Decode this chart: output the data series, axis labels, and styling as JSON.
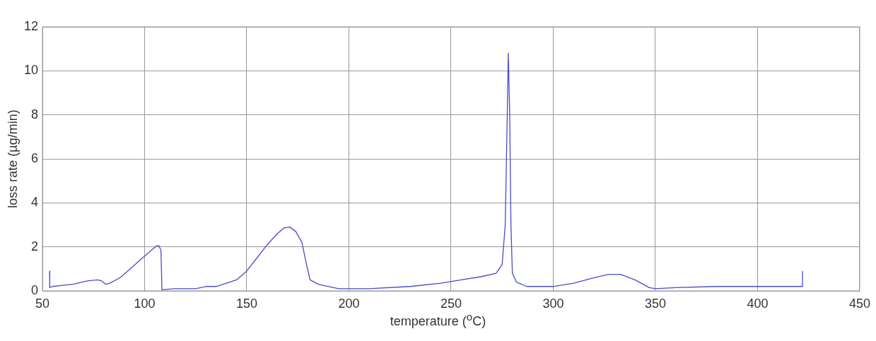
{
  "chart_data": {
    "type": "line",
    "xlabel": "temperature ($^{o}$C)",
    "ylabel": "loss rate (µg/min)",
    "xlim": [
      50,
      450
    ],
    "xticks": [
      50,
      100,
      150,
      200,
      250,
      300,
      350,
      400,
      450
    ],
    "ylim": [
      0,
      12
    ],
    "yticks": [
      0,
      2,
      4,
      6,
      8,
      10,
      12
    ],
    "grid": true,
    "marker": "none",
    "line_style": "solid",
    "series": [
      {
        "color": "#4b4bc8",
        "x": [
          53.5,
          53.6,
          55,
          60,
          65,
          72,
          77,
          79,
          81,
          83,
          88,
          93,
          99,
          104,
          106,
          107,
          108,
          108.5,
          115,
          125,
          130,
          135,
          140,
          145,
          150,
          155,
          160,
          165,
          168,
          171,
          174,
          177,
          179,
          181,
          185,
          190,
          195,
          210,
          230,
          245,
          255,
          265,
          272,
          275,
          276.5,
          277.5,
          278,
          278.7,
          279.3,
          280,
          282,
          287,
          300,
          310,
          320,
          327,
          333,
          340,
          347,
          350,
          360,
          380,
          400,
          420,
          422,
          422
        ],
        "values": [
          0.9,
          0.15,
          0.2,
          0.25,
          0.3,
          0.45,
          0.5,
          0.45,
          0.3,
          0.35,
          0.6,
          1.0,
          1.5,
          1.9,
          2.05,
          2.05,
          1.85,
          0.05,
          0.1,
          0.1,
          0.2,
          0.2,
          0.35,
          0.5,
          0.9,
          1.5,
          2.1,
          2.6,
          2.85,
          2.9,
          2.7,
          2.2,
          1.3,
          0.5,
          0.3,
          0.2,
          0.1,
          0.1,
          0.2,
          0.35,
          0.5,
          0.65,
          0.8,
          1.2,
          3,
          8,
          10.8,
          8,
          3,
          0.8,
          0.4,
          0.2,
          0.2,
          0.35,
          0.6,
          0.75,
          0.75,
          0.5,
          0.15,
          0.1,
          0.15,
          0.2,
          0.2,
          0.2,
          0.2,
          0.9
        ]
      }
    ]
  }
}
